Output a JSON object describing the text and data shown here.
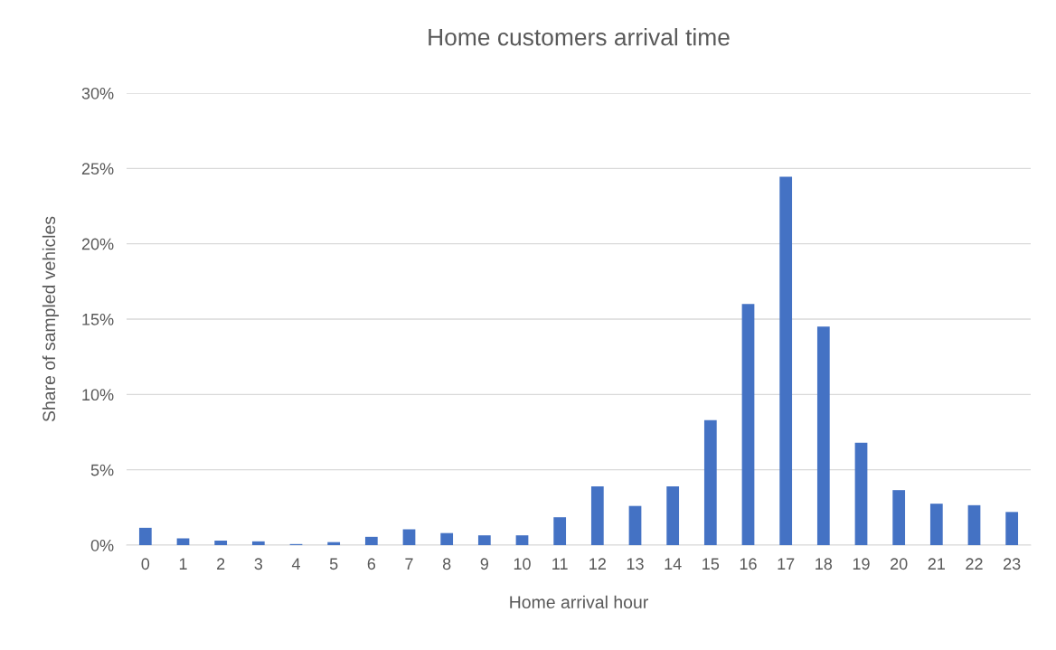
{
  "chart_data": {
    "type": "bar",
    "title": "Home customers arrival time",
    "xlabel": "Home arrival hour",
    "ylabel": "Share of sampled vehicles",
    "categories": [
      "0",
      "1",
      "2",
      "3",
      "4",
      "5",
      "6",
      "7",
      "8",
      "9",
      "10",
      "11",
      "12",
      "13",
      "14",
      "15",
      "16",
      "17",
      "18",
      "19",
      "20",
      "21",
      "22",
      "23"
    ],
    "values": [
      1.15,
      0.45,
      0.3,
      0.25,
      0.07,
      0.2,
      0.55,
      1.05,
      0.8,
      0.65,
      0.65,
      1.85,
      3.9,
      2.6,
      3.9,
      8.3,
      16.0,
      24.45,
      14.5,
      6.8,
      3.65,
      2.75,
      2.65,
      2.2
    ],
    "color": "#4472c4",
    "ylim": [
      0,
      30
    ],
    "yticks": [
      {
        "value": 0,
        "label": "0%"
      },
      {
        "value": 5,
        "label": "5%"
      },
      {
        "value": 10,
        "label": "10%"
      },
      {
        "value": 15,
        "label": "15%"
      },
      {
        "value": 20,
        "label": "20%"
      },
      {
        "value": 25,
        "label": "25%"
      },
      {
        "value": 30,
        "label": "30%"
      }
    ],
    "grid": "y",
    "legend": false
  }
}
